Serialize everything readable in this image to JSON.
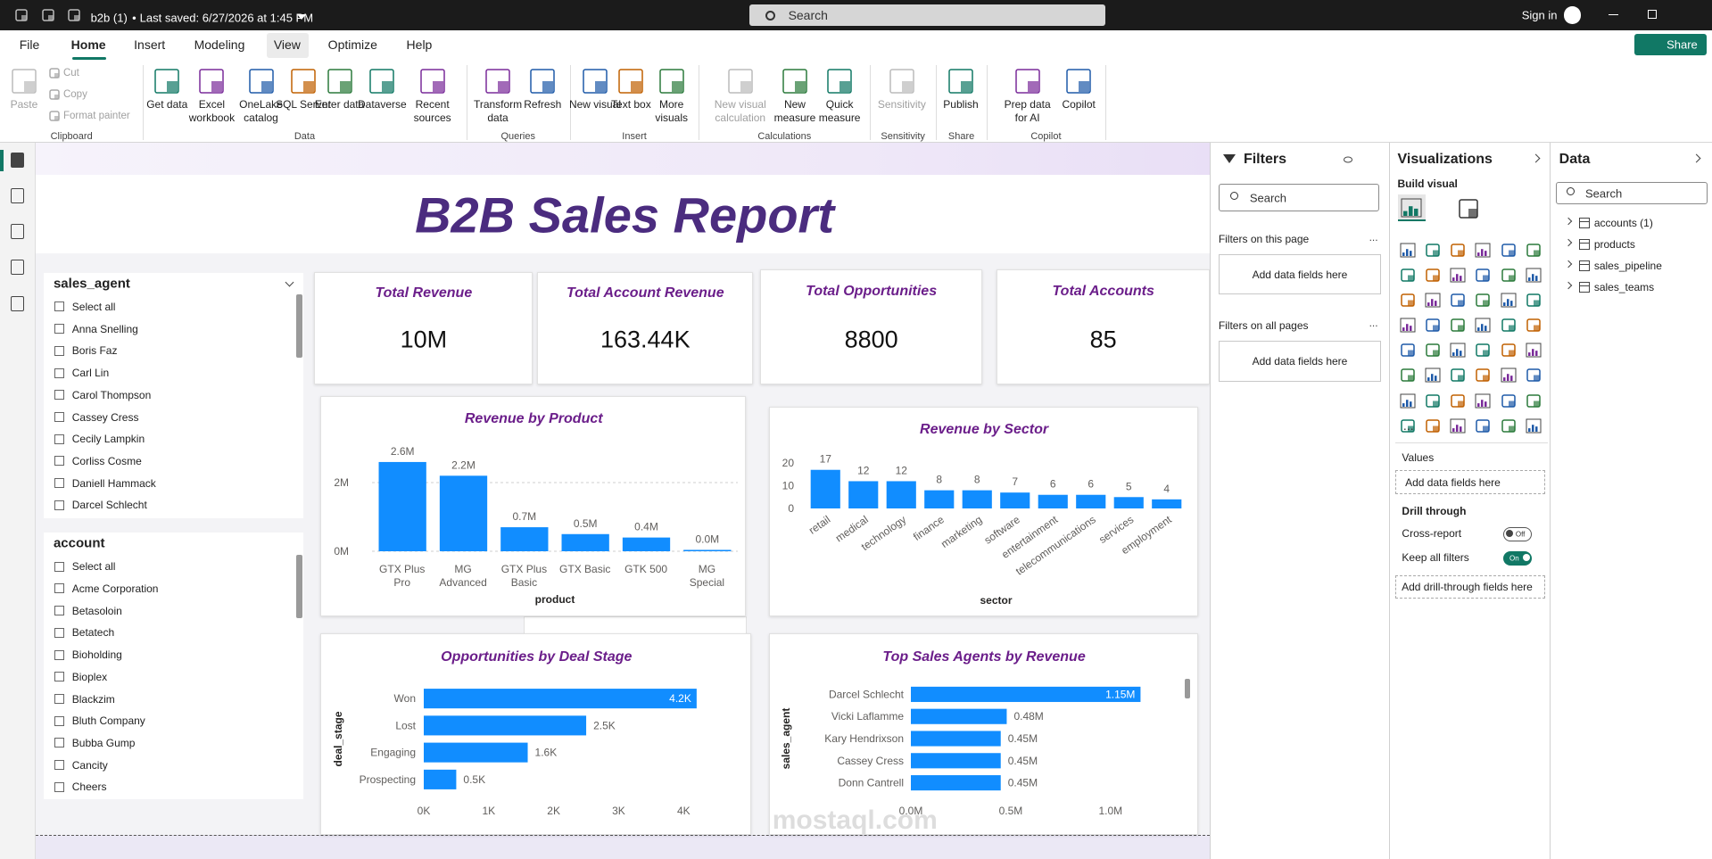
{
  "titlebar": {
    "document": "b2b (1)",
    "separator": "•",
    "saved": "Last saved: 6/27/2026 at 1:45 PM",
    "search": "Search",
    "sign_in": "Sign in"
  },
  "tabs": [
    "File",
    "Home",
    "Insert",
    "Modeling",
    "View",
    "Optimize",
    "Help"
  ],
  "share": "Share",
  "ribbon": [
    {
      "name": "Clipboard",
      "buttons": [
        "Paste",
        "Cut",
        "Copy",
        "Format painter"
      ]
    },
    {
      "name": "Data",
      "buttons": [
        "Get data",
        "Excel workbook",
        "OneLake catalog",
        "SQL Server",
        "Enter data",
        "Dataverse",
        "Recent sources"
      ]
    },
    {
      "name": "Queries",
      "buttons": [
        "Transform data",
        "Refresh"
      ]
    },
    {
      "name": "Insert",
      "buttons": [
        "New visual",
        "Text box",
        "More visuals"
      ]
    },
    {
      "name": "Calculations",
      "buttons": [
        "New visual calculation",
        "New measure",
        "Quick measure"
      ]
    },
    {
      "name": "Sensitivity",
      "buttons": [
        "Sensitivity"
      ]
    },
    {
      "name": "Share",
      "buttons": [
        "Publish"
      ]
    },
    {
      "name": "Copilot",
      "buttons": [
        "Prep data for AI",
        "Copilot"
      ]
    }
  ],
  "report": {
    "title": "B2B Sales Report",
    "slicers": [
      {
        "title": "sales_agent",
        "items": [
          "Select all",
          "Anna Snelling",
          "Boris Faz",
          "Carl Lin",
          "Carol Thompson",
          "Cassey Cress",
          "Cecily Lampkin",
          "Corliss Cosme",
          "Daniell Hammack",
          "Darcel Schlecht"
        ]
      },
      {
        "title": "account",
        "items": [
          "Select all",
          "Acme Corporation",
          "Betasoloin",
          "Betatech",
          "Bioholding",
          "Bioplex",
          "Blackzim",
          "Bluth Company",
          "Bubba Gump",
          "Cancity",
          "Cheers"
        ]
      }
    ],
    "cards": [
      {
        "label": "Total Revenue",
        "value": "10M"
      },
      {
        "label": "Total Account Revenue",
        "value": "163.44K"
      },
      {
        "label": "Total Opportunities",
        "value": "8800"
      },
      {
        "label": "Total Accounts",
        "value": "85"
      }
    ],
    "charts": [
      {
        "type": "bar",
        "orientation": "vertical",
        "title": "Revenue by Product",
        "x_label": "product",
        "categories": [
          "GTX Plus Pro",
          "MG Advanced",
          "GTX Plus Basic",
          "GTX Basic",
          "GTK 500",
          "MG Special"
        ],
        "values": [
          2.6,
          2.2,
          0.7,
          0.5,
          0.4,
          0.04
        ],
        "value_labels": [
          "2.6M",
          "2.2M",
          "0.7M",
          "0.5M",
          "0.4M",
          "0.0M"
        ],
        "ylim": [
          0,
          3.3
        ],
        "yticks": [
          {
            "value": 0,
            "label": "0M"
          },
          {
            "value": 2,
            "label": "2M"
          }
        ],
        "color": "#118dff",
        "grid": true
      },
      {
        "type": "bar",
        "orientation": "vertical",
        "title": "Revenue by Sector",
        "x_label": "sector",
        "categories": [
          "retail",
          "medical",
          "technology",
          "finance",
          "marketing",
          "software",
          "entertainment",
          "telecommunications",
          "services",
          "employment"
        ],
        "values": [
          17,
          12,
          12,
          8,
          8,
          7,
          6,
          6,
          5,
          4
        ],
        "ylim": [
          0,
          22
        ],
        "yticks": [
          0,
          10,
          20
        ],
        "color": "#118dff",
        "grid": false
      },
      {
        "type": "bar",
        "orientation": "horizontal",
        "title": "Opportunities by Deal Stage",
        "y_label": "deal_stage",
        "categories": [
          "Won",
          "Lost",
          "Engaging",
          "Prospecting"
        ],
        "values": [
          4.2,
          2.5,
          1.6,
          0.5
        ],
        "value_labels": [
          "4.2K",
          "2.5K",
          "1.6K",
          "0.5K"
        ],
        "xlim": [
          0,
          4.6
        ],
        "xticks": [
          {
            "value": 0,
            "label": "0K"
          },
          {
            "value": 1,
            "label": "1K"
          },
          {
            "value": 2,
            "label": "2K"
          },
          {
            "value": 3,
            "label": "3K"
          },
          {
            "value": 4,
            "label": "4K"
          }
        ],
        "color": "#118dff",
        "grid": false
      },
      {
        "type": "bar",
        "orientation": "horizontal",
        "title": "Top Sales Agents by Revenue",
        "y_label": "sales_agent",
        "categories": [
          "Darcel Schlecht",
          "Vicki Laflamme",
          "Kary Hendrixson",
          "Cassey Cress",
          "Donn Cantrell"
        ],
        "values": [
          1.15,
          0.48,
          0.45,
          0.45,
          0.45
        ],
        "value_labels": [
          "1.15M",
          "0.48M",
          "0.45M",
          "0.45M",
          "0.45M"
        ],
        "xlim": [
          0,
          1.3
        ],
        "xticks": [
          {
            "value": 0,
            "label": "0.0M"
          },
          {
            "value": 0.5,
            "label": "0.5M"
          },
          {
            "value": 1,
            "label": "1.0M"
          }
        ],
        "color": "#118dff",
        "grid": false
      }
    ],
    "watermark": "mostaql.com"
  },
  "filters": {
    "title": "Filters",
    "search": "Search",
    "sections": [
      {
        "title": "Filters on this page",
        "more": "...",
        "placeholder": "Add data fields here"
      },
      {
        "title": "Filters on all pages",
        "more": "...",
        "placeholder": "Add data fields here"
      }
    ]
  },
  "visualizations": {
    "title": "Visualizations",
    "build": "Build visual",
    "more": "...",
    "values_title": "Values",
    "values_placeholder": "Add data fields here",
    "drill_title": "Drill through",
    "cross_report": "Cross-report",
    "cross_state": "Off",
    "keep_filters": "Keep all filters",
    "keep_state": "On",
    "drill_placeholder": "Add drill-through fields here"
  },
  "data_pane": {
    "title": "Data",
    "search": "Search",
    "tables": [
      "accounts (1)",
      "products",
      "sales_pipeline",
      "sales_teams"
    ]
  }
}
